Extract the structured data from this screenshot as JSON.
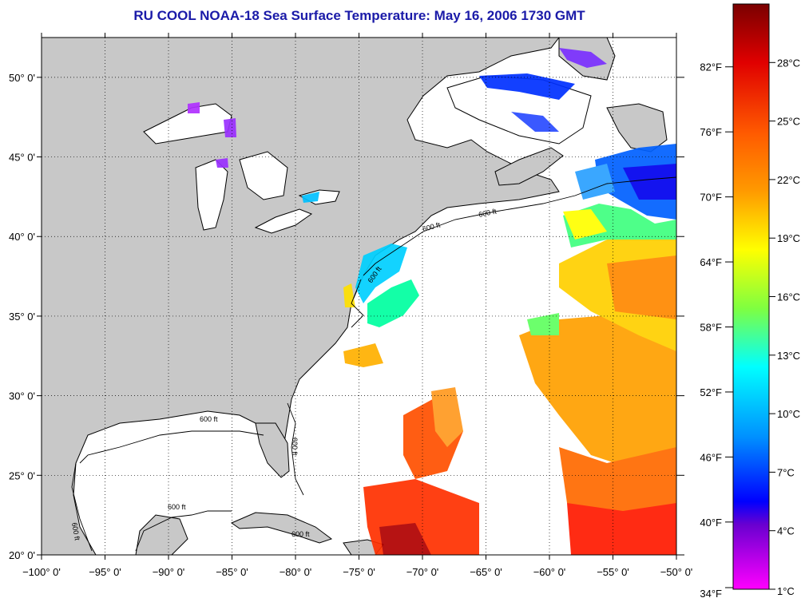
{
  "title": "RU COOL  NOAA-18  Sea Surface Temperature:  May 16, 2006 1730 GMT",
  "map": {
    "lon_range": [
      -100,
      -50
    ],
    "lat_range": [
      20,
      52.5
    ],
    "lon_ticks": [
      "−100° 0'",
      "−95° 0'",
      "−90° 0'",
      "−85° 0'",
      "−80° 0'",
      "−75° 0'",
      "−70° 0'",
      "−65° 0'",
      "−60° 0'",
      "−55° 0'",
      "−50° 0'"
    ],
    "lat_ticks": [
      "20° 0'",
      "25° 0'",
      "30° 0'",
      "35° 0'",
      "40° 0'",
      "45° 0'",
      "50° 0'"
    ],
    "land_color": "#c8c8c8",
    "ocean_nodata_color": "#ffffff",
    "contour_label": "600 ft",
    "grid": "dotted"
  },
  "colorbar": {
    "fahrenheit_labels": [
      "82°F",
      "76°F",
      "70°F",
      "64°F",
      "58°F",
      "52°F",
      "46°F",
      "40°F",
      "34°F"
    ],
    "celsius_labels": [
      "28°C",
      "25°C",
      "22°C",
      "19°C",
      "16°C",
      "13°C",
      "10°C",
      "7°C",
      "4°C",
      "1°C"
    ],
    "colors_top_to_bottom": [
      "#8b0000",
      "#ff0000",
      "#ff8000",
      "#ffff00",
      "#00ff80",
      "#00ffff",
      "#0080ff",
      "#0000ff",
      "#8000ff",
      "#ff00ff"
    ]
  }
}
